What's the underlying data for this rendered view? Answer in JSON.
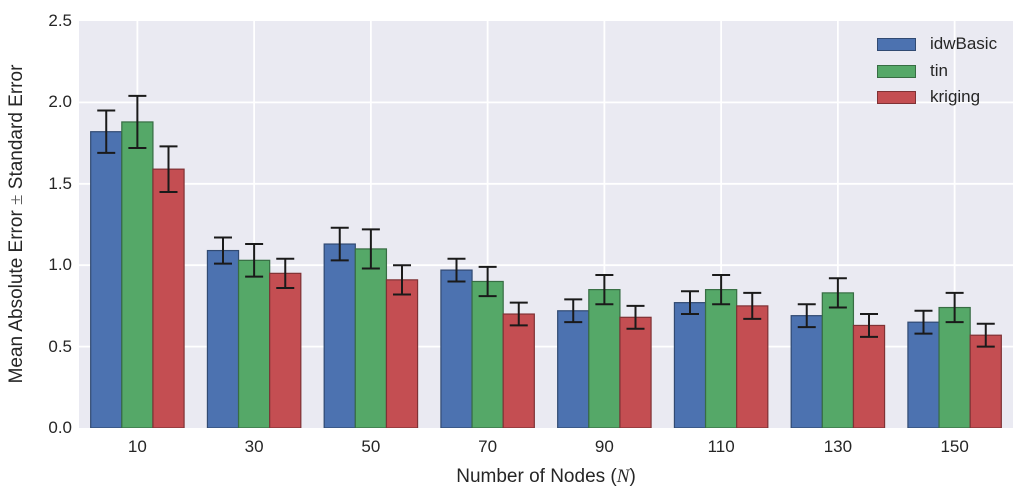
{
  "figure": {
    "background": "#FFFFFF",
    "plot_background": "#EAEAF2",
    "grid_color": "#FFFFFF",
    "text_color": "#262626",
    "errorbar_color": "#1A1A1A"
  },
  "chart_data": {
    "type": "bar",
    "title": "",
    "xlabel_prefix": "Number of Nodes (",
    "xlabel_var": "N",
    "xlabel_suffix": ")",
    "ylabel_prefix": "Mean Absolute Error ",
    "ylabel_pm": "±",
    "ylabel_suffix": " Standard Error",
    "categories": [
      "10",
      "30",
      "50",
      "70",
      "90",
      "110",
      "130",
      "150"
    ],
    "yticks": [
      "0.0",
      "0.5",
      "1.0",
      "1.5",
      "2.0",
      "2.5"
    ],
    "ylim": [
      0,
      2.5
    ],
    "grid": true,
    "legend_position": "upper right",
    "bar_group_fraction": 0.8,
    "series": [
      {
        "name": "idwBasic",
        "color": "#4C72B0",
        "edge_color": "#314A72",
        "values": [
          1.82,
          1.09,
          1.13,
          0.97,
          0.72,
          0.77,
          0.69,
          0.65
        ],
        "errors": [
          0.13,
          0.08,
          0.1,
          0.07,
          0.07,
          0.07,
          0.07,
          0.07
        ]
      },
      {
        "name": "tin",
        "color": "#55A868",
        "edge_color": "#376D43",
        "values": [
          1.88,
          1.03,
          1.1,
          0.9,
          0.85,
          0.85,
          0.83,
          0.74
        ],
        "errors": [
          0.16,
          0.1,
          0.12,
          0.09,
          0.09,
          0.09,
          0.09,
          0.09
        ]
      },
      {
        "name": "kriging",
        "color": "#C44E52",
        "edge_color": "#7F3235",
        "values": [
          1.59,
          0.95,
          0.91,
          0.7,
          0.68,
          0.75,
          0.63,
          0.57
        ],
        "errors": [
          0.14,
          0.09,
          0.09,
          0.07,
          0.07,
          0.08,
          0.07,
          0.07
        ]
      }
    ]
  }
}
